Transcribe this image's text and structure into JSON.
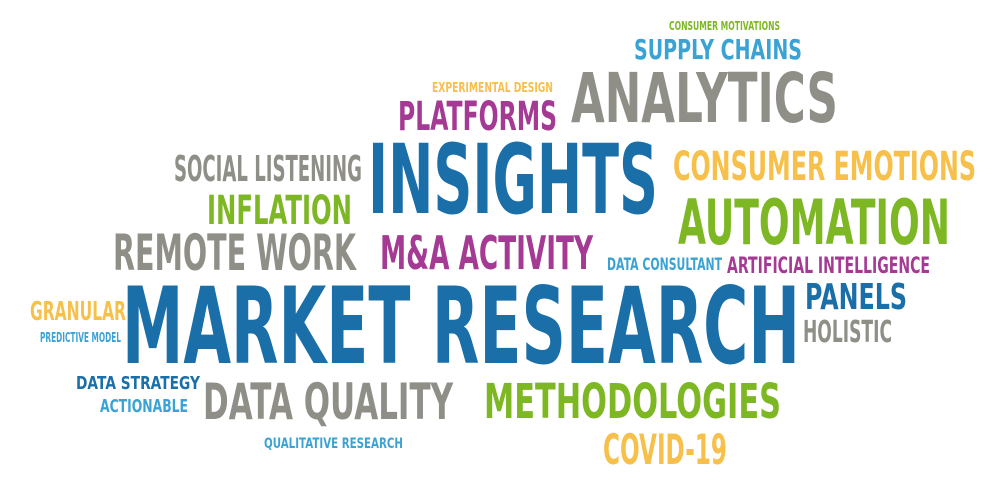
{
  "palette": {
    "blue": "#1B6FA8",
    "light_blue": "#3AA3D4",
    "gray": "#8F8F88",
    "green": "#7DB824",
    "purple": "#A53A94",
    "yellow": "#F7C04A"
  },
  "words": [
    {
      "id": "consumer-motivations",
      "text": "CONSUMER MOTIVATIONS",
      "color": "green"
    },
    {
      "id": "supply-chains",
      "text": "SUPPLY CHAINS",
      "color": "light_blue"
    },
    {
      "id": "experimental-design",
      "text": "EXPERIMENTAL DESIGN",
      "color": "yellow"
    },
    {
      "id": "analytics",
      "text": "ANALYTICS",
      "color": "gray"
    },
    {
      "id": "platforms",
      "text": "PLATFORMS",
      "color": "purple"
    },
    {
      "id": "social-listening",
      "text": "SOCIAL LISTENING",
      "color": "gray"
    },
    {
      "id": "insights",
      "text": "INSIGHTS",
      "color": "blue"
    },
    {
      "id": "consumer-emotions",
      "text": "CONSUMER EMOTIONS",
      "color": "yellow"
    },
    {
      "id": "inflation",
      "text": "INFLATION",
      "color": "green"
    },
    {
      "id": "automation",
      "text": "AUTOMATION",
      "color": "green"
    },
    {
      "id": "remote-work",
      "text": "REMOTE WORK",
      "color": "gray"
    },
    {
      "id": "ma-activity",
      "text": "M&A ACTIVITY",
      "color": "purple"
    },
    {
      "id": "data-consultant",
      "text": "DATA CONSULTANT",
      "color": "light_blue"
    },
    {
      "id": "artificial-intelligence",
      "text": "ARTIFICIAL INTELLIGENCE",
      "color": "purple"
    },
    {
      "id": "granular",
      "text": "GRANULAR",
      "color": "yellow"
    },
    {
      "id": "market-research",
      "text": "MARKET RESEARCH",
      "color": "blue"
    },
    {
      "id": "panels",
      "text": "PANELS",
      "color": "blue"
    },
    {
      "id": "predictive-model",
      "text": "PREDICTIVE MODEL",
      "color": "light_blue"
    },
    {
      "id": "holistic",
      "text": "HOLISTIC",
      "color": "gray"
    },
    {
      "id": "data-strategy",
      "text": "DATA STRATEGY",
      "color": "blue"
    },
    {
      "id": "actionable",
      "text": "ACTIONABLE",
      "color": "light_blue"
    },
    {
      "id": "data-quality",
      "text": "DATA QUALITY",
      "color": "gray"
    },
    {
      "id": "methodologies",
      "text": "METHODOLOGIES",
      "color": "green"
    },
    {
      "id": "qualitative-research",
      "text": "QUALITATIVE RESEARCH",
      "color": "light_blue"
    },
    {
      "id": "covid-19",
      "text": "COVID-19",
      "color": "yellow"
    }
  ]
}
